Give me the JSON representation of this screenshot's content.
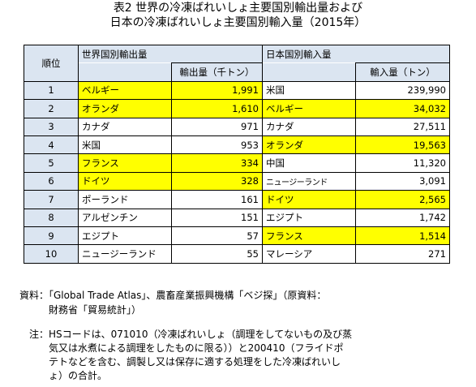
{
  "title": {
    "line1": "表2  世界の冷凍ばれいしょ主要国別輸出量および",
    "line2": "日本の冷凍ばれいしょ主要国別輸入量（2015年）"
  },
  "table": {
    "header": {
      "rank": "順位",
      "export_group": "世界国別輸出量",
      "export_unit": "輸出量（千トン）",
      "import_group": "日本国別輸入量",
      "import_unit": "輸入量（トン）"
    },
    "rows": [
      {
        "rank": "1",
        "exp_country": "ベルギー",
        "exp_value": "1,991",
        "exp_hl": true,
        "imp_country": "米国",
        "imp_value": "239,990",
        "imp_hl": false
      },
      {
        "rank": "2",
        "exp_country": "オランダ",
        "exp_value": "1,610",
        "exp_hl": true,
        "imp_country": "ベルギー",
        "imp_value": "34,032",
        "imp_hl": true
      },
      {
        "rank": "3",
        "exp_country": "カナダ",
        "exp_value": "971",
        "exp_hl": false,
        "imp_country": "カナダ",
        "imp_value": "27,511",
        "imp_hl": false
      },
      {
        "rank": "4",
        "exp_country": "米国",
        "exp_value": "953",
        "exp_hl": false,
        "imp_country": "オランダ",
        "imp_value": "19,563",
        "imp_hl": true
      },
      {
        "rank": "5",
        "exp_country": "フランス",
        "exp_value": "334",
        "exp_hl": true,
        "imp_country": "中国",
        "imp_value": "11,320",
        "imp_hl": false
      },
      {
        "rank": "6",
        "exp_country": "ドイツ",
        "exp_value": "328",
        "exp_hl": true,
        "imp_country": "ニュージーランド",
        "imp_value": "3,091",
        "imp_hl": false
      },
      {
        "rank": "7",
        "exp_country": "ポーランド",
        "exp_value": "161",
        "exp_hl": false,
        "imp_country": "ドイツ",
        "imp_value": "2,565",
        "imp_hl": true
      },
      {
        "rank": "8",
        "exp_country": "アルゼンチン",
        "exp_value": "151",
        "exp_hl": false,
        "imp_country": "エジプト",
        "imp_value": "1,742",
        "imp_hl": false
      },
      {
        "rank": "9",
        "exp_country": "エジプト",
        "exp_value": "57",
        "exp_hl": false,
        "imp_country": "フランス",
        "imp_value": "1,514",
        "imp_hl": true
      },
      {
        "rank": "10",
        "exp_country": "ニュージーランド",
        "exp_value": "55",
        "exp_hl": false,
        "imp_country": "マレーシア",
        "imp_value": "271",
        "imp_hl": false
      }
    ]
  },
  "notes": {
    "source_line1": "資料：「Global Trade Atlas」、農畜産業振興機構「ベジ探」（原資料：",
    "source_line2": "財務省「貿易統計」）",
    "note_line1": "注：HSコードは、071010（冷凍ばれいしょ（調理をしてないもの及び蒸",
    "note_line2": "気又は水煮による調理をしたものに限る））と200410（フライドポ",
    "note_line3": "テトなどを含む、調製し又は保存に適する処理をした冷凍ばれいし",
    "note_line4": "ょ）の合計。"
  },
  "colors": {
    "header_bg": "#dbe5f1",
    "highlight": "#ffff00"
  }
}
